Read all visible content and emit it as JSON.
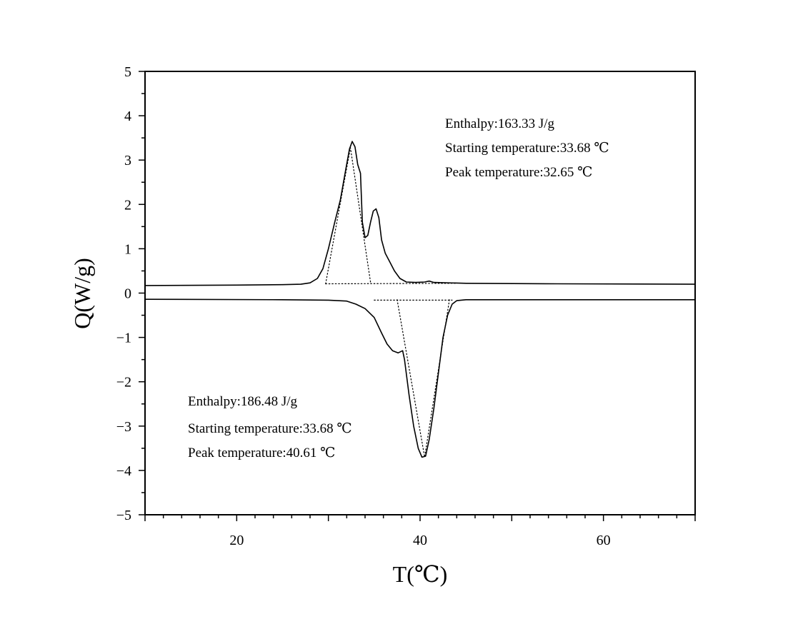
{
  "chart_data": {
    "type": "line",
    "xlabel": "T(℃)",
    "ylabel": "Q(W/g)",
    "xlim": [
      10,
      70
    ],
    "ylim": [
      -5,
      5
    ],
    "x_ticks": [
      20,
      40,
      60
    ],
    "x_tick_labels": [
      "20",
      "40",
      "60"
    ],
    "y_ticks": [
      -5,
      -4,
      -3,
      -2,
      -1,
      0,
      1,
      2,
      3,
      4,
      5
    ],
    "y_tick_labels": [
      "−5",
      "−4",
      "−3",
      "−2",
      "−1",
      "0",
      "1",
      "2",
      "3",
      "4",
      "5"
    ],
    "grid": false,
    "series": [
      {
        "line_style": "solid",
        "points": [
          [
            10,
            0.17
          ],
          [
            20,
            0.18
          ],
          [
            25,
            0.19
          ],
          [
            27,
            0.2
          ],
          [
            28,
            0.23
          ],
          [
            28.8,
            0.33
          ],
          [
            29.4,
            0.55
          ],
          [
            30.0,
            1.0
          ],
          [
            30.7,
            1.6
          ],
          [
            31.3,
            2.1
          ],
          [
            31.9,
            2.8
          ],
          [
            32.3,
            3.25
          ],
          [
            32.6,
            3.42
          ],
          [
            32.9,
            3.3
          ],
          [
            33.2,
            2.9
          ],
          [
            33.5,
            2.7
          ],
          [
            33.7,
            1.6
          ],
          [
            34.0,
            1.25
          ],
          [
            34.3,
            1.3
          ],
          [
            34.6,
            1.6
          ],
          [
            34.9,
            1.85
          ],
          [
            35.2,
            1.9
          ],
          [
            35.5,
            1.7
          ],
          [
            35.8,
            1.2
          ],
          [
            36.2,
            0.9
          ],
          [
            36.7,
            0.7
          ],
          [
            37.2,
            0.5
          ],
          [
            37.8,
            0.33
          ],
          [
            38.5,
            0.25
          ],
          [
            39.5,
            0.24
          ],
          [
            40.5,
            0.25
          ],
          [
            41.0,
            0.27
          ],
          [
            41.5,
            0.24
          ],
          [
            45,
            0.22
          ],
          [
            55,
            0.21
          ],
          [
            70,
            0.2
          ]
        ]
      },
      {
        "line_style": "solid",
        "points": [
          [
            10,
            -0.14
          ],
          [
            25,
            -0.15
          ],
          [
            30,
            -0.16
          ],
          [
            32,
            -0.18
          ],
          [
            33,
            -0.25
          ],
          [
            34,
            -0.35
          ],
          [
            35,
            -0.55
          ],
          [
            35.8,
            -0.9
          ],
          [
            36.4,
            -1.15
          ],
          [
            37.0,
            -1.3
          ],
          [
            37.6,
            -1.35
          ],
          [
            38.1,
            -1.3
          ],
          [
            38.3,
            -1.5
          ],
          [
            38.8,
            -2.3
          ],
          [
            39.3,
            -3.0
          ],
          [
            39.8,
            -3.5
          ],
          [
            40.2,
            -3.7
          ],
          [
            40.6,
            -3.68
          ],
          [
            41.0,
            -3.3
          ],
          [
            41.5,
            -2.6
          ],
          [
            42.0,
            -1.8
          ],
          [
            42.5,
            -1.0
          ],
          [
            43.0,
            -0.5
          ],
          [
            43.5,
            -0.25
          ],
          [
            44.0,
            -0.17
          ],
          [
            45,
            -0.15
          ],
          [
            55,
            -0.15
          ],
          [
            70,
            -0.15
          ]
        ]
      },
      {
        "line_style": "dotted",
        "points": [
          [
            29.7,
            0.21
          ],
          [
            32.4,
            3.28
          ],
          [
            34.6,
            0.24
          ]
        ]
      },
      {
        "line_style": "dotted",
        "points": [
          [
            29.7,
            0.21
          ],
          [
            44.0,
            0.22
          ]
        ]
      },
      {
        "line_style": "dotted",
        "points": [
          [
            37.5,
            -0.15
          ],
          [
            40.5,
            -3.7
          ],
          [
            43.2,
            -0.15
          ]
        ]
      },
      {
        "line_style": "dotted",
        "points": [
          [
            35.0,
            -0.16
          ],
          [
            43.5,
            -0.16
          ]
        ]
      }
    ],
    "annotations": [
      {
        "lines": [
          "Enthalpy:163.33 J/g",
          "Starting temperature:33.68 ℃",
          "Peak temperature:32.65 ℃"
        ]
      },
      {
        "lines": [
          "Enthalpy:186.48 J/g",
          "Starting temperature:33.68 ℃",
          "Peak temperature:40.61 ℃"
        ]
      }
    ]
  }
}
